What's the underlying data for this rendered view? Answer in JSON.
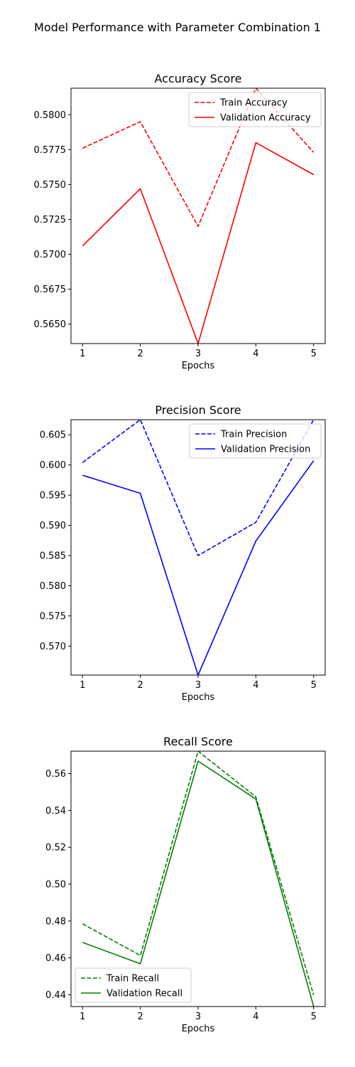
{
  "suptitle": "Model Performance with Parameter Combination 1",
  "chart_data": [
    {
      "type": "line",
      "title": "Accuracy Score",
      "xlabel": "Epochs",
      "ylabel": "",
      "x": [
        1,
        2,
        3,
        4,
        5
      ],
      "xticks": [
        "1",
        "2",
        "3",
        "4",
        "5"
      ],
      "xlim": [
        0.8,
        5.2
      ],
      "ylim": [
        0.5636,
        0.5819
      ],
      "yticks": [
        "0.5650",
        "0.5675",
        "0.5700",
        "0.5725",
        "0.5750",
        "0.5775",
        "0.5800"
      ],
      "legend_position": "upper right",
      "color": "#ff0000",
      "series": [
        {
          "name": "Train Accuracy",
          "style": "dashed",
          "values": [
            0.5776,
            0.5795,
            0.572,
            0.5819,
            0.5773
          ]
        },
        {
          "name": "Validation Accuracy",
          "style": "solid",
          "values": [
            0.5706,
            0.5747,
            0.5636,
            0.578,
            0.5757
          ]
        }
      ]
    },
    {
      "type": "line",
      "title": "Precision Score",
      "xlabel": "Epochs",
      "ylabel": "",
      "x": [
        1,
        2,
        3,
        4,
        5
      ],
      "xticks": [
        "1",
        "2",
        "3",
        "4",
        "5"
      ],
      "xlim": [
        0.8,
        5.2
      ],
      "ylim": [
        0.5652,
        0.6075
      ],
      "yticks": [
        "0.570",
        "0.575",
        "0.580",
        "0.585",
        "0.590",
        "0.595",
        "0.600",
        "0.605"
      ],
      "legend_position": "upper right",
      "color": "#0000ff",
      "series": [
        {
          "name": "Train Precision",
          "style": "dashed",
          "values": [
            0.6004,
            0.6075,
            0.585,
            0.5905,
            0.6075
          ]
        },
        {
          "name": "Validation Precision",
          "style": "solid",
          "values": [
            0.5983,
            0.5953,
            0.5652,
            0.5874,
            0.6007
          ]
        }
      ]
    },
    {
      "type": "line",
      "title": "Recall Score",
      "xlabel": "Epochs",
      "ylabel": "",
      "x": [
        1,
        2,
        3,
        4,
        5
      ],
      "xticks": [
        "1",
        "2",
        "3",
        "4",
        "5"
      ],
      "xlim": [
        0.8,
        5.2
      ],
      "ylim": [
        0.4336,
        0.5722
      ],
      "yticks": [
        "0.44",
        "0.46",
        "0.48",
        "0.50",
        "0.52",
        "0.54",
        "0.56"
      ],
      "legend_position": "lower left",
      "color": "#008000",
      "series": [
        {
          "name": "Train Recall",
          "style": "dashed",
          "values": [
            0.4785,
            0.4613,
            0.5722,
            0.5474,
            0.4398
          ]
        },
        {
          "name": "Validation Recall",
          "style": "solid",
          "values": [
            0.4684,
            0.4568,
            0.5668,
            0.5462,
            0.4336
          ]
        }
      ]
    }
  ]
}
